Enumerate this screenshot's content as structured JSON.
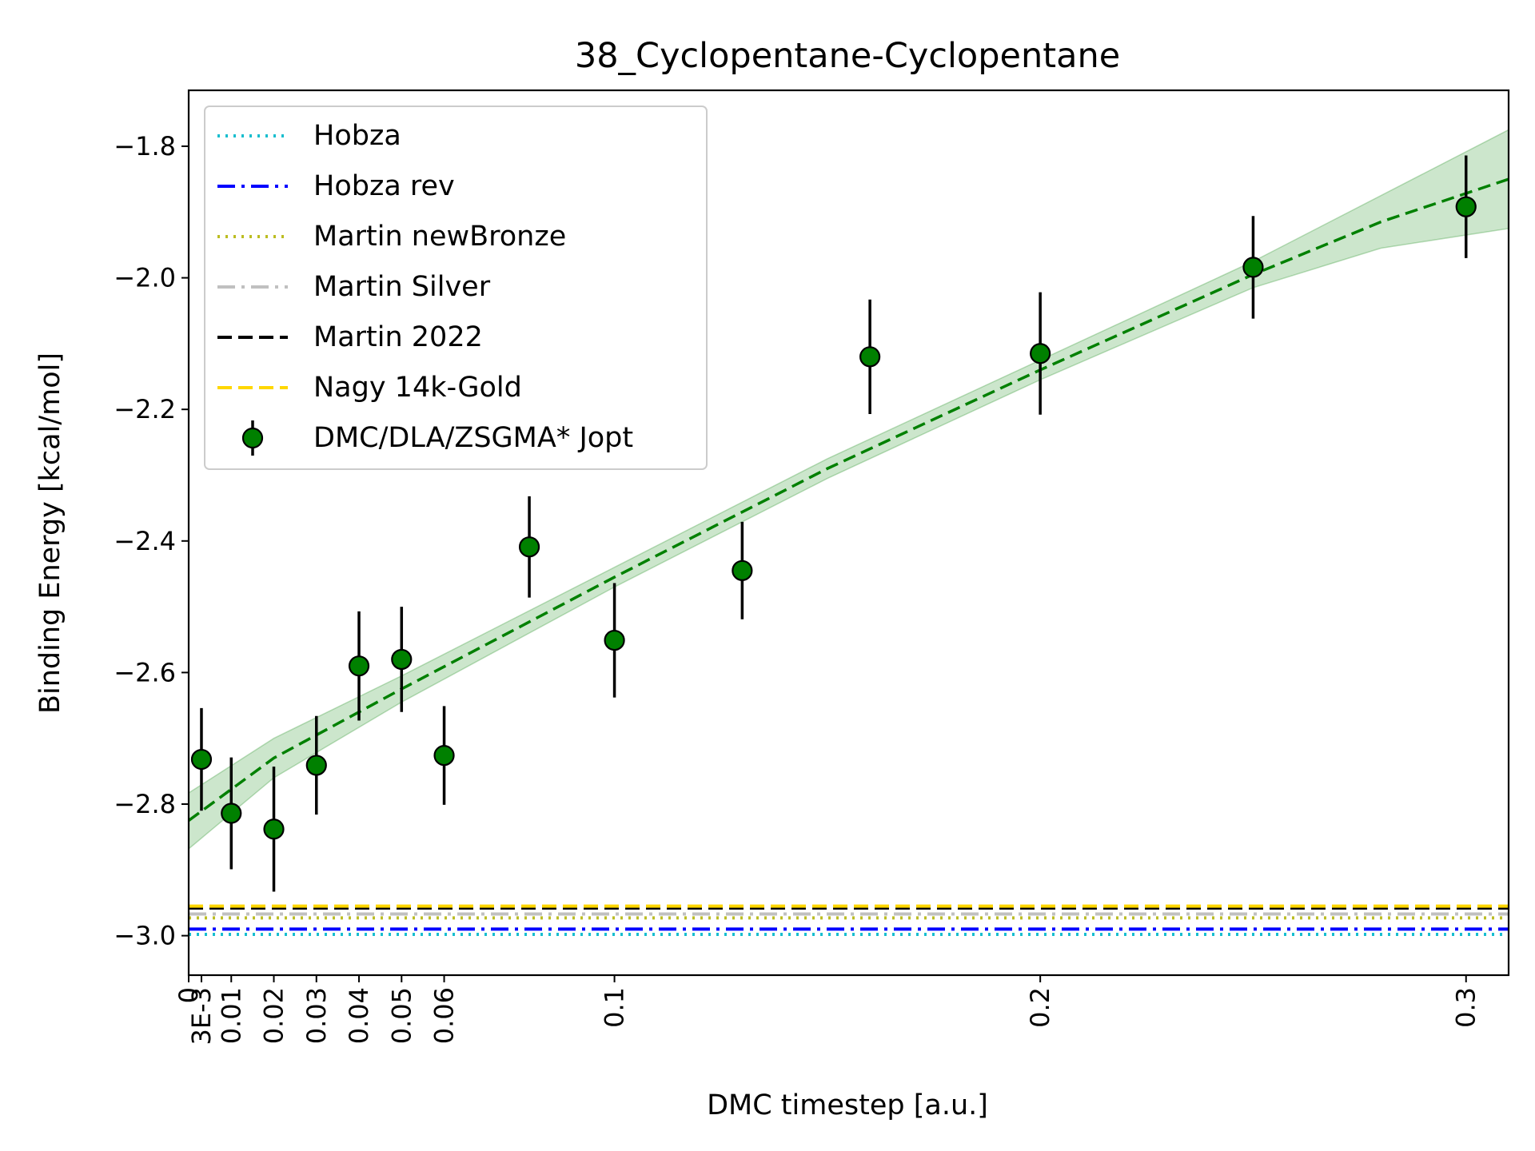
{
  "chart_data": {
    "type": "scatter",
    "title": "38_Cyclopentane-Cyclopentane",
    "xlabel": "DMC timestep [a.u.]",
    "ylabel": "Binding Energy [kcal/mol]",
    "xlim": [
      0,
      0.31
    ],
    "ylim": [
      -3.06,
      -1.715
    ],
    "x_ticks": [
      {
        "value": 0,
        "label": "0"
      },
      {
        "value": 0.003,
        "label": "3E-3"
      },
      {
        "value": 0.01,
        "label": "0.01"
      },
      {
        "value": 0.02,
        "label": "0.02"
      },
      {
        "value": 0.03,
        "label": "0.03"
      },
      {
        "value": 0.04,
        "label": "0.04"
      },
      {
        "value": 0.05,
        "label": "0.05"
      },
      {
        "value": 0.06,
        "label": "0.06"
      },
      {
        "value": 0.1,
        "label": "0.1"
      },
      {
        "value": 0.2,
        "label": "0.2"
      },
      {
        "value": 0.3,
        "label": "0.3"
      }
    ],
    "y_ticks": [
      {
        "value": -1.8,
        "label": "−1.8"
      },
      {
        "value": -2.0,
        "label": "−2.0"
      },
      {
        "value": -2.2,
        "label": "−2.2"
      },
      {
        "value": -2.4,
        "label": "−2.4"
      },
      {
        "value": -2.6,
        "label": "−2.6"
      },
      {
        "value": -2.8,
        "label": "−2.8"
      },
      {
        "value": -3.0,
        "label": "−3.0"
      }
    ],
    "grid": false,
    "legend_position": "upper-left",
    "reference_lines": [
      {
        "name": "Hobza",
        "y": -2.998,
        "color": "#17becf",
        "style": "dotted"
      },
      {
        "name": "Hobza rev",
        "y": -2.99,
        "color": "#0000ff",
        "style": "dashdot"
      },
      {
        "name": "Martin newBronze",
        "y": -2.973,
        "color": "#bcbd22",
        "style": "dotted"
      },
      {
        "name": "Martin Silver",
        "y": -2.967,
        "color": "#c0c0c0",
        "style": "dashdot"
      },
      {
        "name": "Martin 2022",
        "y": -2.958,
        "color": "#000000",
        "style": "dashed"
      },
      {
        "name": "Nagy 14k-Gold",
        "y": -2.955,
        "color": "#ffd700",
        "style": "dashed"
      }
    ],
    "series": [
      {
        "name": "DMC/DLA/ZSGMA* Jopt",
        "color": "#008000",
        "points": [
          {
            "x": 0.003,
            "y": -2.732,
            "err": 0.078
          },
          {
            "x": 0.01,
            "y": -2.814,
            "err": 0.085
          },
          {
            "x": 0.02,
            "y": -2.838,
            "err": 0.095
          },
          {
            "x": 0.03,
            "y": -2.741,
            "err": 0.075
          },
          {
            "x": 0.04,
            "y": -2.59,
            "err": 0.083
          },
          {
            "x": 0.05,
            "y": -2.58,
            "err": 0.08
          },
          {
            "x": 0.06,
            "y": -2.726,
            "err": 0.075
          },
          {
            "x": 0.08,
            "y": -2.409,
            "err": 0.077
          },
          {
            "x": 0.1,
            "y": -2.551,
            "err": 0.087
          },
          {
            "x": 0.13,
            "y": -2.445,
            "err": 0.074
          },
          {
            "x": 0.16,
            "y": -2.12,
            "err": 0.087
          },
          {
            "x": 0.2,
            "y": -2.115,
            "err": 0.093
          },
          {
            "x": 0.25,
            "y": -1.984,
            "err": 0.078
          },
          {
            "x": 0.3,
            "y": -1.892,
            "err": 0.078
          }
        ]
      }
    ],
    "fit": {
      "color": "#008000",
      "style": "dashed",
      "points": [
        {
          "x": 0.0,
          "y": -2.825,
          "lo": -2.868,
          "hi": -2.783
        },
        {
          "x": 0.02,
          "y": -2.73,
          "lo": -2.76,
          "hi": -2.7
        },
        {
          "x": 0.05,
          "y": -2.625,
          "lo": -2.645,
          "hi": -2.605
        },
        {
          "x": 0.1,
          "y": -2.455,
          "lo": -2.47,
          "hi": -2.44
        },
        {
          "x": 0.15,
          "y": -2.29,
          "lo": -2.305,
          "hi": -2.275
        },
        {
          "x": 0.2,
          "y": -2.14,
          "lo": -2.155,
          "hi": -2.125
        },
        {
          "x": 0.25,
          "y": -1.995,
          "lo": -2.015,
          "hi": -1.975
        },
        {
          "x": 0.28,
          "y": -1.915,
          "lo": -1.955,
          "hi": -1.875
        },
        {
          "x": 0.31,
          "y": -1.85,
          "lo": -1.925,
          "hi": -1.775
        }
      ]
    }
  }
}
